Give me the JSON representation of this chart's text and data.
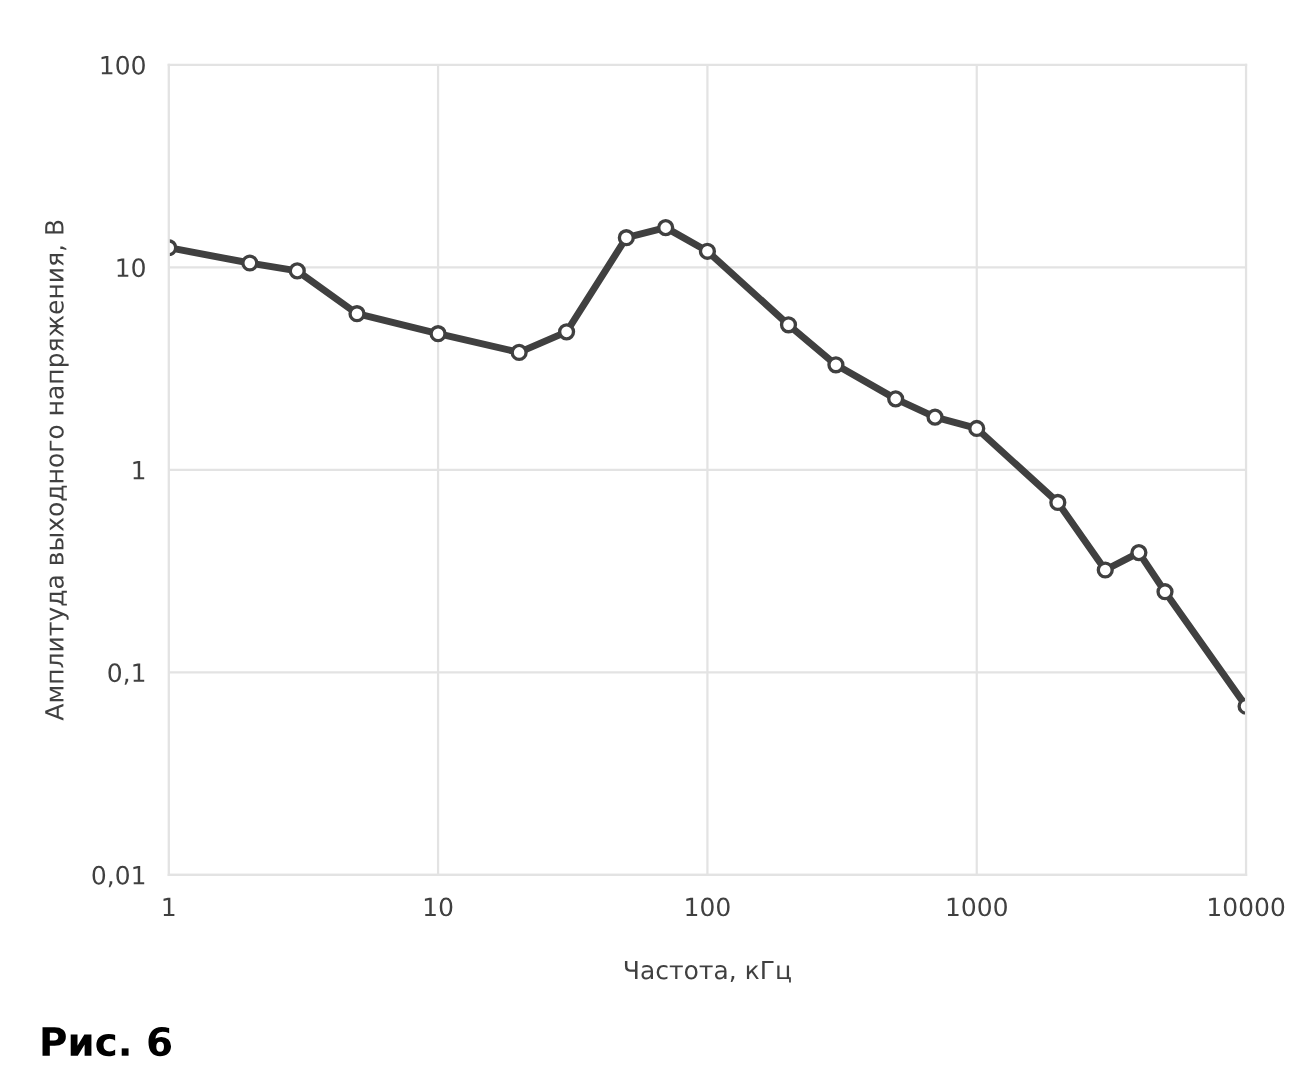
{
  "chart_data": {
    "type": "line",
    "xlabel": "Частота, кГц",
    "ylabel": "Амплитуда выходного напряжения, В",
    "log": "xy",
    "grid": true,
    "marker": "circle",
    "line_style": "solid",
    "x": [
      1,
      2,
      3,
      5,
      10,
      20,
      30,
      50,
      70,
      100,
      200,
      300,
      500,
      700,
      1000,
      2000,
      3000,
      4000,
      5000,
      10000
    ],
    "series": [
      {
        "color": "#404040",
        "values": [
          12.5,
          10.5,
          9.6,
          5.9,
          4.7,
          3.8,
          4.8,
          14,
          15.7,
          12,
          5.2,
          3.3,
          2.24,
          1.82,
          1.6,
          0.69,
          0.32,
          0.39,
          0.25,
          0.068
        ]
      }
    ],
    "xlim": [
      1,
      10000
    ],
    "xticks": [
      1,
      10,
      100,
      1000,
      10000
    ],
    "ylim": [
      0.01,
      100
    ],
    "yticks": [
      {
        "value": 0.01,
        "label": "0,01"
      },
      {
        "value": 0.1,
        "label": "0,1"
      },
      {
        "value": 1,
        "label": "1"
      },
      {
        "value": 10,
        "label": "10"
      },
      {
        "value": 100,
        "label": "100"
      }
    ],
    "annotations": [
      "Рис. 6"
    ]
  }
}
